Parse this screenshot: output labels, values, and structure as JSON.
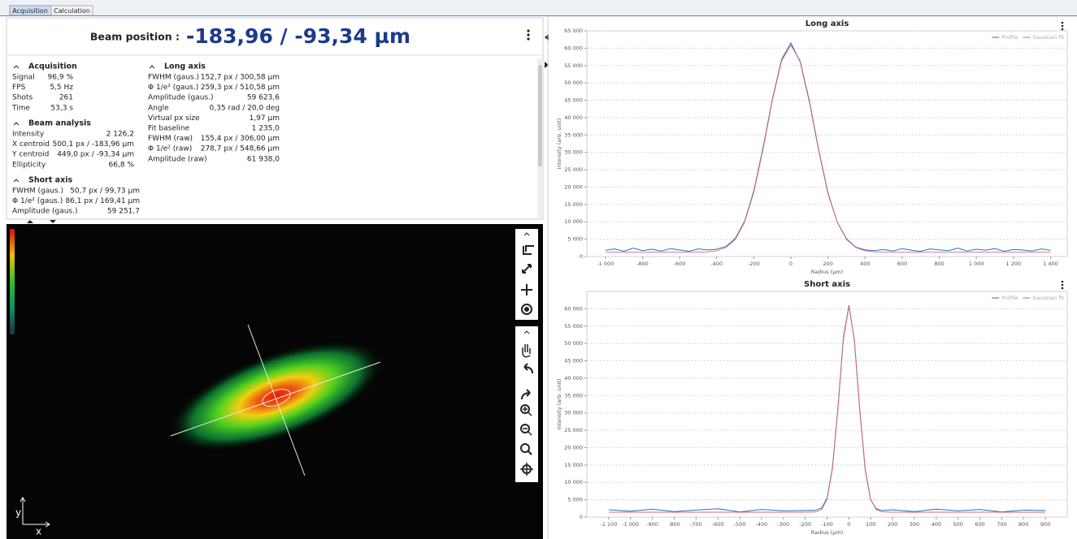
{
  "tabs": [
    "Acquisition",
    "Calculation"
  ],
  "beam_position": {
    "label": "Beam position :",
    "value": "-183,96 / -93,34 µm"
  },
  "stats": [
    {
      "title": "Acquisition",
      "rows": [
        [
          "Signal",
          "96,9 %"
        ],
        [
          "FPS",
          "5,5 Hz"
        ],
        [
          "Shots",
          "261"
        ],
        [
          "Time",
          "53,3 s"
        ]
      ]
    },
    {
      "title": "Beam analysis",
      "rows": [
        [
          "Intensity",
          "2 126,2"
        ],
        [
          "X centroid",
          "500,1 px / -183,96 µm"
        ],
        [
          "Y centroid",
          "449,0 px / -93,34 µm"
        ],
        [
          "Ellipticity",
          "66,8 %"
        ]
      ]
    },
    {
      "title": "Short axis",
      "rows": [
        [
          "FWHM (gaus.)",
          "50,7 px / 99,73 µm"
        ],
        [
          "Φ 1/e² (gaus.)",
          "86,1 px / 169,41 µm"
        ],
        [
          "Amplitude (gaus.)",
          "59 251,7"
        ]
      ]
    },
    {
      "title": "Long axis",
      "rows": [
        [
          "FWHM (gaus.)",
          "152,7 px / 300,58 µm"
        ],
        [
          "Φ 1/e² (gaus.)",
          "259,3 px / 510,58 µm"
        ],
        [
          "Amplitude (gaus.)",
          "59 623,6"
        ],
        [
          "Angle",
          "0,35 rad / 20,0 deg"
        ],
        [
          "Virtual px size",
          "1,97 µm"
        ],
        [
          "Fit baseline",
          "1 235,0"
        ],
        [
          "FWHM (raw)",
          "155,4 px / 306,00 µm"
        ],
        [
          "Φ 1/e² (raw)",
          "278,7 px / 548,66 µm"
        ],
        [
          "Amplitude (raw)",
          "61 938,0"
        ]
      ]
    }
  ],
  "image": {
    "axis_x": "x",
    "axis_y": "y"
  },
  "chart_data": [
    {
      "type": "line",
      "title": "Long axis",
      "x_label": "Radius (µm)",
      "y_label": "Intensity (arb. unit)",
      "grid": true,
      "legend": "top-right",
      "x": [
        -1000,
        -950,
        -900,
        -850,
        -800,
        -750,
        -700,
        -650,
        -600,
        -550,
        -500,
        -450,
        -400,
        -350,
        -300,
        -250,
        -200,
        -150,
        -100,
        -50,
        0,
        50,
        100,
        150,
        200,
        250,
        300,
        350,
        400,
        450,
        500,
        550,
        600,
        650,
        700,
        750,
        800,
        850,
        900,
        950,
        1000,
        1050,
        1100,
        1150,
        1200,
        1250,
        1300,
        1350,
        1400
      ],
      "xlim": [
        -1100,
        1490
      ],
      "xticks": [
        {
          "value": -1000,
          "label": "-1 000"
        },
        -800,
        -600,
        -400,
        -200,
        0,
        200,
        400,
        600,
        800,
        {
          "value": 1000,
          "label": "1 000"
        },
        {
          "value": 1200,
          "label": "1 200"
        },
        {
          "value": 1400,
          "label": "1 400"
        }
      ],
      "ylim": [
        0,
        65000
      ],
      "yticks": [
        0,
        {
          "value": 5000,
          "label": "5 000"
        },
        {
          "value": 10000,
          "label": "10 000"
        },
        {
          "value": 15000,
          "label": "15 000"
        },
        {
          "value": 20000,
          "label": "20 000"
        },
        {
          "value": 25000,
          "label": "25 000"
        },
        {
          "value": 30000,
          "label": "30 000"
        },
        {
          "value": 35000,
          "label": "35 000"
        },
        {
          "value": 40000,
          "label": "40 000"
        },
        {
          "value": 45000,
          "label": "45 000"
        },
        {
          "value": 50000,
          "label": "50 000"
        },
        {
          "value": 55000,
          "label": "55 000"
        },
        {
          "value": 60000,
          "label": "60 000"
        },
        {
          "value": 65000,
          "label": "65 000"
        }
      ],
      "series": [
        {
          "name": "Profile",
          "color": "#2a74b8",
          "values": [
            1800,
            2200,
            1500,
            2400,
            1700,
            2100,
            1600,
            2300,
            1900,
            1500,
            2200,
            1900,
            2100,
            2900,
            5200,
            10100,
            18900,
            31400,
            45300,
            56800,
            61500,
            56100,
            44500,
            30600,
            18200,
            9900,
            5100,
            2700,
            1900,
            1700,
            2000,
            1600,
            2300,
            1800,
            1500,
            2200,
            1900,
            1700,
            2400,
            1600,
            2100,
            1800,
            2300,
            1500,
            2000,
            1900,
            1600,
            2200,
            1800
          ]
        },
        {
          "name": "Gaussian fit",
          "color": "#e0607e",
          "values": [
            1235,
            1235,
            1235,
            1235,
            1235,
            1235,
            1235,
            1235,
            1235,
            1235,
            1235,
            1346,
            1652,
            2570,
            4894,
            9823,
            18483,
            30904,
            44946,
            56390,
            60835,
            56390,
            44946,
            30904,
            18483,
            9823,
            4894,
            2570,
            1652,
            1346,
            1235,
            1235,
            1235,
            1235,
            1235,
            1235,
            1235,
            1235,
            1235,
            1235,
            1235,
            1235,
            1235,
            1235,
            1235,
            1235,
            1235,
            1235,
            1235
          ]
        }
      ]
    },
    {
      "type": "line",
      "title": "Short axis",
      "x_label": "Radius (µm)",
      "y_label": "Intensity (arb. unit)",
      "grid": true,
      "legend": "top-right",
      "x": [
        -1100,
        -1000,
        -900,
        -800,
        -700,
        -600,
        -500,
        -400,
        -300,
        -200,
        -150,
        -125,
        -100,
        -75,
        -50,
        -25,
        0,
        25,
        50,
        75,
        100,
        125,
        150,
        200,
        300,
        400,
        500,
        600,
        700,
        800,
        900
      ],
      "xlim": [
        -1200,
        1000
      ],
      "xticks": [
        {
          "value": -1100,
          "label": "-1 100"
        },
        {
          "value": -1000,
          "label": "-1 000"
        },
        -900,
        -800,
        -700,
        -600,
        -500,
        -400,
        -300,
        -200,
        -100,
        0,
        100,
        200,
        300,
        400,
        500,
        600,
        700,
        800,
        900
      ],
      "ylim": [
        0,
        65000
      ],
      "yticks": [
        0,
        {
          "value": 5000,
          "label": "5 000"
        },
        {
          "value": 10000,
          "label": "10 000"
        },
        {
          "value": 15000,
          "label": "15 000"
        },
        {
          "value": 20000,
          "label": "20 000"
        },
        {
          "value": 25000,
          "label": "25 000"
        },
        {
          "value": 30000,
          "label": "30 000"
        },
        {
          "value": 35000,
          "label": "35 000"
        },
        {
          "value": 40000,
          "label": "40 000"
        },
        {
          "value": 45000,
          "label": "45 000"
        },
        {
          "value": 50000,
          "label": "50 000"
        },
        {
          "value": 55000,
          "label": "55 000"
        },
        {
          "value": 60000,
          "label": "60 000"
        }
      ],
      "series": [
        {
          "name": "Profile",
          "color": "#2a74b8",
          "values": [
            2100,
            1700,
            2300,
            1600,
            2000,
            2400,
            1500,
            2200,
            1800,
            1900,
            2000,
            2600,
            5400,
            14300,
            31500,
            51700,
            61000,
            50800,
            30600,
            13500,
            4900,
            2400,
            1900,
            2100,
            1600,
            2300,
            1800,
            2200,
            1500,
            2000,
            1900
          ]
        },
        {
          "name": "Gaussian fit",
          "color": "#e0607e",
          "values": [
            1400,
            1400,
            1400,
            1400,
            1400,
            1400,
            1400,
            1400,
            1400,
            1400,
            1517,
            2182,
            5121,
            13884,
            31055,
            51230,
            60652,
            51230,
            31055,
            13884,
            5121,
            2182,
            1517,
            1400,
            1400,
            1400,
            1400,
            1400,
            1400,
            1400,
            1400
          ]
        }
      ]
    }
  ]
}
